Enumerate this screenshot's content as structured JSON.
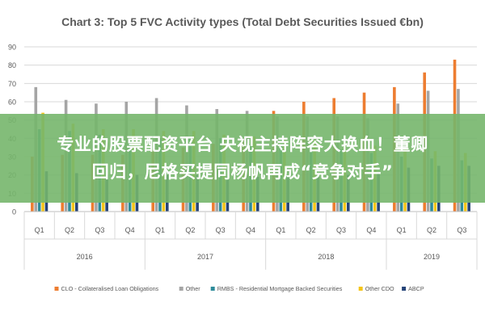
{
  "chart_data": {
    "type": "bar",
    "title": "Chart 3: Top 5 FVC Activity types (Total Debt Securities Issued €bn)",
    "xlabel": "",
    "ylabel": "",
    "ylim": [
      0,
      90
    ],
    "yticks": [
      "0",
      "10",
      "20",
      "30",
      "40",
      "50",
      "60",
      "70",
      "80",
      "90"
    ],
    "grid": true,
    "legend_position": "bottom",
    "categories": [
      "Q1",
      "Q2",
      "Q3",
      "Q4",
      "Q1",
      "Q2",
      "Q3",
      "Q4",
      "Q1",
      "Q2",
      "Q3",
      "Q4",
      "Q1",
      "Q2",
      "Q3"
    ],
    "year_groups": [
      {
        "label": "2016",
        "count": 4
      },
      {
        "label": "2017",
        "count": 4
      },
      {
        "label": "2018",
        "count": 4
      },
      {
        "label": "2019",
        "count": 3
      }
    ],
    "series": [
      {
        "name": "CLO - Collateralised Loan Obligations",
        "color": "#ed7d31",
        "values": [
          30,
          31,
          31,
          31,
          34,
          35,
          37,
          40,
          55,
          60,
          62,
          65,
          68,
          76,
          83
        ]
      },
      {
        "name": "Other",
        "color": "#a5a5a5",
        "values": [
          68,
          61,
          59,
          60,
          62,
          58,
          56,
          55,
          52,
          52,
          52,
          51,
          59,
          66,
          67
        ]
      },
      {
        "name": "RMBS - Residential Mortgage Backed Securities",
        "color": "#2e8b9a",
        "values": [
          45,
          44,
          42,
          40,
          40,
          40,
          40,
          36,
          36,
          36,
          34,
          32,
          30,
          29,
          28
        ]
      },
      {
        "name": "Other CDO",
        "color": "#f5c518",
        "values": [
          54,
          48,
          45,
          45,
          44,
          44,
          42,
          41,
          40,
          39,
          38,
          36,
          35,
          33,
          32
        ]
      },
      {
        "name": "ABCP",
        "color": "#264478",
        "values": [
          22,
          21,
          20,
          20,
          20,
          20,
          19,
          19,
          19,
          20,
          20,
          21,
          24,
          25,
          25
        ]
      }
    ]
  },
  "overlay": {
    "line1": "专业的股票配资平台 央视主持阵容大换血！董卿",
    "line2": "回归，尼格买提同杨帆再成“竞争对手”"
  }
}
